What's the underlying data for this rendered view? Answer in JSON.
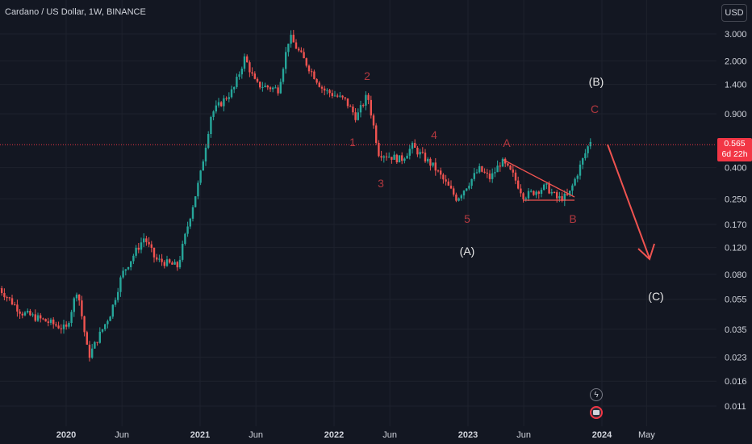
{
  "title": "Cardano / US Dollar, 1W, BINANCE",
  "currency_button": "USD",
  "last_price": {
    "value": "0.565",
    "countdown": "6d 22h",
    "color": "#f23645"
  },
  "icons": {
    "alert": "lightning-icon",
    "events": "calendar-event-icon"
  },
  "colors": {
    "background": "#131722",
    "up": "#26a69a",
    "down": "#ef5350",
    "annotation": "#b2383f",
    "arrow": "#ef5350"
  },
  "chart_data": {
    "type": "candlestick",
    "y_scale": "log",
    "y_ticks": [
      "3.000",
      "2.000",
      "1.400",
      "0.900",
      "0.400",
      "0.250",
      "0.170",
      "0.120",
      "0.080",
      "0.055",
      "0.035",
      "0.023",
      "0.016",
      "0.011"
    ],
    "x_ticks": [
      {
        "label": "2020",
        "bold": true
      },
      {
        "label": "Jun",
        "bold": false
      },
      {
        "label": "2021",
        "bold": true
      },
      {
        "label": "Jun",
        "bold": false
      },
      {
        "label": "2022",
        "bold": true
      },
      {
        "label": "Jun",
        "bold": false
      },
      {
        "label": "2023",
        "bold": true
      },
      {
        "label": "Jun",
        "bold": false
      },
      {
        "label": "2024",
        "bold": true
      },
      {
        "label": "May",
        "bold": false
      }
    ],
    "price_path": [
      [
        "2019-07",
        0.065
      ],
      [
        "2019-09",
        0.045
      ],
      [
        "2019-11",
        0.04
      ],
      [
        "2020-01",
        0.035
      ],
      [
        "2020-02",
        0.065
      ],
      [
        "2020-03",
        0.023
      ],
      [
        "2020-05",
        0.045
      ],
      [
        "2020-06",
        0.08
      ],
      [
        "2020-08",
        0.14
      ],
      [
        "2020-09",
        0.1
      ],
      [
        "2020-11",
        0.09
      ],
      [
        "2020-12",
        0.18
      ],
      [
        "2021-01",
        0.35
      ],
      [
        "2021-02",
        0.9
      ],
      [
        "2021-04",
        1.3
      ],
      [
        "2021-05",
        2.1
      ],
      [
        "2021-06",
        1.4
      ],
      [
        "2021-08",
        1.3
      ],
      [
        "2021-09",
        2.9
      ],
      [
        "2021-10",
        2.2
      ],
      [
        "2021-12",
        1.3
      ],
      [
        "2022-02",
        1.1
      ],
      [
        "2022-03",
        0.85
      ],
      [
        "2022-04",
        1.2
      ],
      [
        "2022-05",
        0.5
      ],
      [
        "2022-07",
        0.45
      ],
      [
        "2022-08",
        0.55
      ],
      [
        "2022-10",
        0.4
      ],
      [
        "2022-12",
        0.25
      ],
      [
        "2023-02",
        0.39
      ],
      [
        "2023-03",
        0.34
      ],
      [
        "2023-04",
        0.44
      ],
      [
        "2023-05",
        0.36
      ],
      [
        "2023-06",
        0.26
      ],
      [
        "2023-08",
        0.3
      ],
      [
        "2023-09",
        0.25
      ],
      [
        "2023-10",
        0.26
      ],
      [
        "2023-11",
        0.4
      ],
      [
        "2023-12",
        0.61
      ],
      [
        "2023-12",
        0.565
      ]
    ],
    "current_price": 0.565,
    "annotations": [
      "1",
      "2",
      "3",
      "4",
      "5",
      "(A)",
      "A",
      "B",
      "C",
      "(B)",
      "(C)"
    ]
  }
}
